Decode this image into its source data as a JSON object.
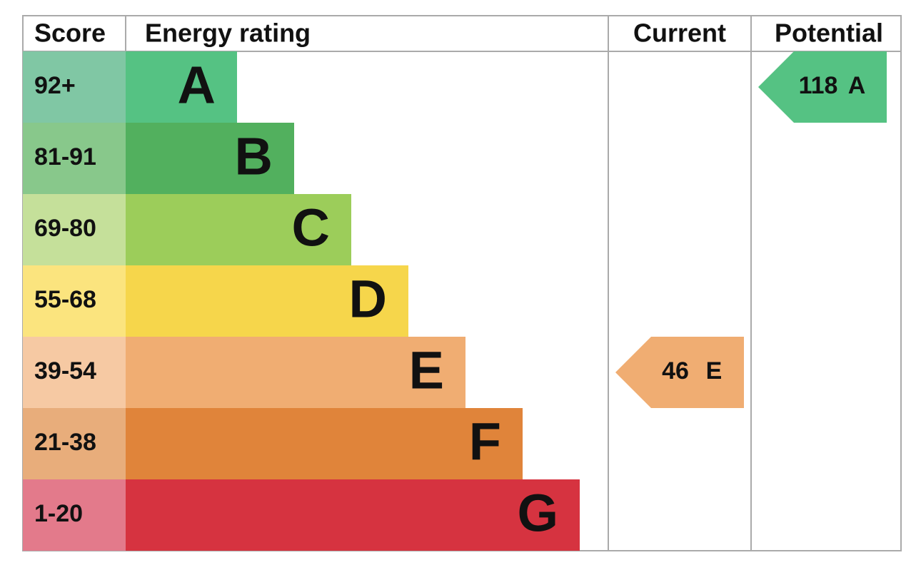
{
  "header": {
    "score": "Score",
    "rating": "Energy rating",
    "current": "Current",
    "potential": "Potential"
  },
  "bands": [
    {
      "score": "92+",
      "letter": "A"
    },
    {
      "score": "81-91",
      "letter": "B"
    },
    {
      "score": "69-80",
      "letter": "C"
    },
    {
      "score": "55-68",
      "letter": "D"
    },
    {
      "score": "39-54",
      "letter": "E"
    },
    {
      "score": "21-38",
      "letter": "F"
    },
    {
      "score": "1-20",
      "letter": "G"
    }
  ],
  "current": {
    "value": 46,
    "letter": "E"
  },
  "potential": {
    "value": 118,
    "letter": "A"
  }
}
